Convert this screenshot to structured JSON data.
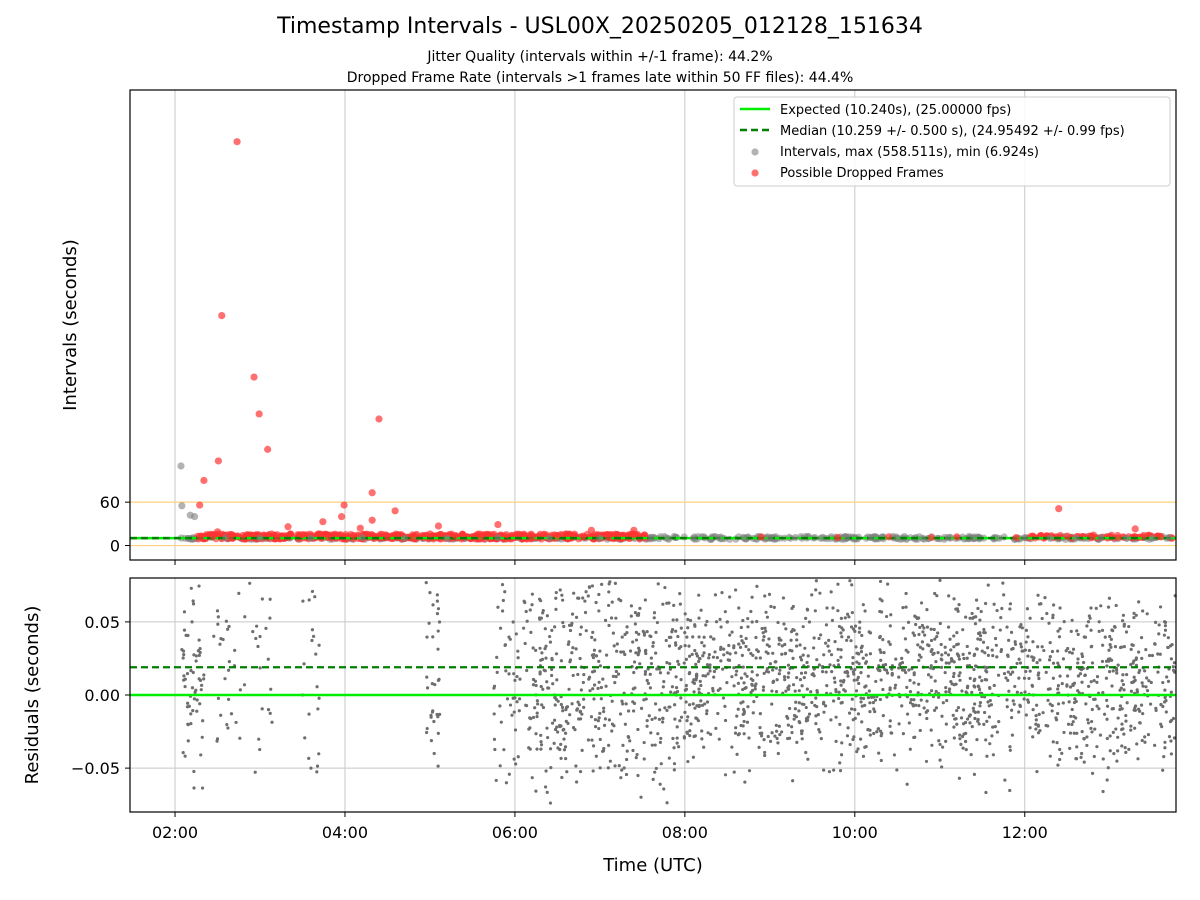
{
  "header": {
    "title": "Timestamp Intervals - USL00X_20250205_012128_151634",
    "subtitle_1": "Jitter Quality (intervals within +/-1 frame): 44.2%",
    "subtitle_2": "Dropped Frame Rate (intervals >1 frames late within 50 FF files): 44.4%"
  },
  "colors": {
    "expected": "#00ee00",
    "median": "#007f00",
    "interval_points": "#808080",
    "dropped_points": "#ff3333",
    "threshold_lines": "#ffd27a",
    "grid": "#c8c8c8"
  },
  "chart_data": [
    {
      "type": "scatter",
      "ylabel": "Intervals (seconds)",
      "xlabel": "",
      "x_unit": "hours UTC",
      "xlim": [
        1.47,
        13.78
      ],
      "ylim": [
        -20,
        630
      ],
      "x_ticks": [
        2,
        4,
        6,
        8,
        10,
        12
      ],
      "y_ticks": [
        0,
        60
      ],
      "grid": "vertical",
      "legend_position": "top-right",
      "legend": [
        "Expected (10.240s), (25.00000 fps)",
        "Median (10.259 +/- 0.500 s), (24.95492 +/- 0.99 fps)",
        "Intervals, max (558.511s), min (6.924s)",
        "Possible Dropped Frames"
      ],
      "reference_lines": {
        "expected": 10.24,
        "median": 10.259,
        "threshold_upper": 60,
        "threshold_lower": 0
      },
      "series": [
        {
          "name": "Intervals, max (558.511s), min (6.924s)",
          "x": [
            2.07,
            2.08,
            2.18,
            2.23,
            2.6,
            3.0,
            3.6,
            4.2,
            4.7,
            5.2,
            5.8,
            6.4,
            7.0,
            7.6,
            7.8,
            8.1,
            8.4,
            8.7,
            9.0,
            9.3,
            9.6,
            9.9,
            10.2,
            10.5,
            10.8,
            11.1,
            11.4,
            11.7,
            12.0,
            12.3,
            12.6,
            12.9,
            13.2,
            13.5,
            13.7
          ],
          "y": [
            110,
            55,
            42,
            40,
            11,
            10,
            10,
            11,
            10,
            10,
            11,
            10,
            10,
            11,
            10,
            10,
            11,
            10,
            10,
            11,
            10,
            10,
            11,
            10,
            10,
            11,
            10,
            10,
            11,
            10,
            10,
            11,
            10,
            10,
            11
          ]
        },
        {
          "name": "Possible Dropped Frames",
          "x": [
            2.73,
            2.55,
            2.93,
            2.99,
            3.09,
            4.4,
            2.51,
            2.34,
            4.32,
            2.29,
            3.99,
            4.59,
            4.32,
            3.96,
            12.4,
            4.18,
            3.74,
            5.8,
            3.33,
            2.5,
            5.1,
            6.9,
            13.3,
            7.4,
            2.3,
            2.45,
            2.65,
            2.8,
            3.2,
            3.5,
            3.8,
            4.1,
            4.5,
            4.8,
            5.0,
            5.3,
            5.6,
            5.9,
            6.2,
            6.5,
            6.8,
            7.1,
            7.4,
            8.9,
            9.8,
            10.4,
            10.9,
            11.2,
            11.9,
            12.5,
            12.8,
            13.1,
            13.4,
            13.6
          ],
          "y": [
            558.5,
            318,
            233,
            182,
            133,
            175,
            117,
            90,
            73,
            56,
            56,
            48,
            35,
            40,
            51,
            24,
            33,
            29,
            26,
            19,
            27,
            21,
            23,
            21,
            12,
            13,
            12,
            14,
            12,
            15,
            13,
            14,
            13,
            12,
            16,
            14,
            13,
            15,
            12,
            14,
            13,
            12,
            15,
            12,
            11,
            12,
            11,
            12,
            11,
            13,
            12,
            11,
            14,
            12
          ]
        }
      ]
    },
    {
      "type": "scatter",
      "ylabel": "Residuals (seconds)",
      "xlabel": "Time (UTC)",
      "x_unit": "hours UTC",
      "xlim": [
        1.47,
        13.78
      ],
      "ylim": [
        -0.08,
        0.08
      ],
      "x_ticks": [
        2,
        4,
        6,
        8,
        10,
        12
      ],
      "x_tick_labels": [
        "02:00",
        "04:00",
        "06:00",
        "08:00",
        "10:00",
        "12:00"
      ],
      "y_ticks": [
        -0.05,
        0.0,
        0.05
      ],
      "y_tick_labels": [
        "−0.05",
        "0.00",
        "0.05"
      ],
      "grid": "both",
      "reference_lines": {
        "expected": 0.0,
        "median": 0.019
      },
      "series": [
        {
          "name": "Residuals",
          "x": [
            2.1,
            2.15,
            2.2,
            2.3,
            2.5,
            2.7,
            3.0,
            3.1,
            3.5,
            3.6,
            5.0,
            5.05,
            5.1,
            5.8,
            5.9,
            6.3,
            6.6,
            7.0,
            7.3,
            7.6,
            7.9,
            8.2,
            8.5,
            8.8,
            9.1,
            9.4,
            9.7,
            10.0,
            10.3,
            10.6,
            10.9,
            11.2,
            11.5,
            11.8,
            12.1,
            12.4,
            12.7,
            13.0,
            13.3,
            13.6
          ],
          "y": [
            0.03,
            -0.02,
            0.05,
            0.01,
            -0.03,
            0.02,
            0.04,
            -0.01,
            0.0,
            -0.05,
            0.07,
            -0.04,
            0.01,
            0.06,
            -0.06,
            0.02,
            -0.01,
            0.03,
            -0.02,
            0.04,
            0.0,
            -0.03,
            0.05,
            0.01,
            -0.04,
            0.02,
            0.03,
            -0.01,
            0.04,
            0.0,
            0.02,
            -0.02,
            0.03,
            0.01,
            0.0,
            0.02,
            -0.03,
            0.04,
            0.01,
            -0.02
          ]
        }
      ]
    }
  ]
}
